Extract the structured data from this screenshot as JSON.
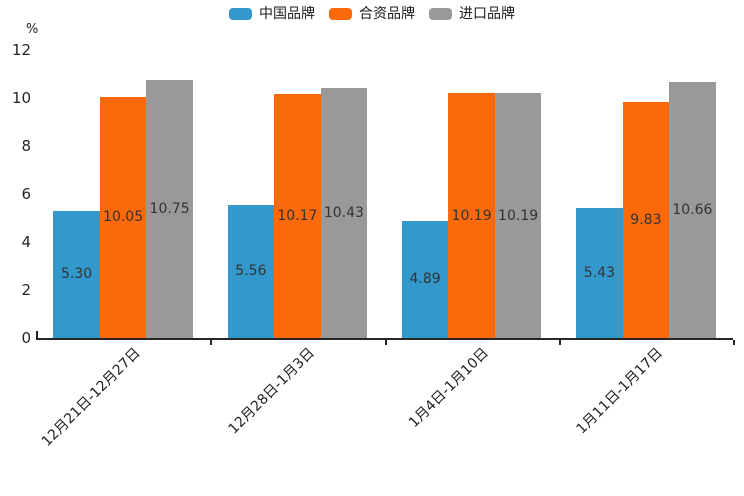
{
  "chart": {
    "axis_color": "#262626",
    "value_text_color": "#333333",
    "background": "#ffffff"
  },
  "chart_data": {
    "type": "bar",
    "title": "",
    "categories": [
      "12月21日-12月27日",
      "12月28日-1月3日",
      "1月4日-1月10日",
      "1月11日-1月17日"
    ],
    "series": [
      {
        "name": "中国品牌",
        "color": "#3398CC",
        "values": [
          5.3,
          5.56,
          4.89,
          5.43
        ]
      },
      {
        "name": "合资品牌",
        "color": "#FB690B",
        "values": [
          10.05,
          10.17,
          10.19,
          9.83
        ]
      },
      {
        "name": "进口品牌",
        "color": "#999999",
        "values": [
          10.75,
          10.43,
          10.19,
          10.66
        ]
      }
    ],
    "xlabel": "",
    "ylabel": "%",
    "ylim": [
      0,
      12
    ],
    "yticks": [
      0,
      2,
      4,
      6,
      8,
      10,
      12
    ],
    "grid": false,
    "legend_position": "top-center",
    "value_labels": true,
    "value_label_decimals": 2,
    "xlabel_rotation_deg": 45
  }
}
